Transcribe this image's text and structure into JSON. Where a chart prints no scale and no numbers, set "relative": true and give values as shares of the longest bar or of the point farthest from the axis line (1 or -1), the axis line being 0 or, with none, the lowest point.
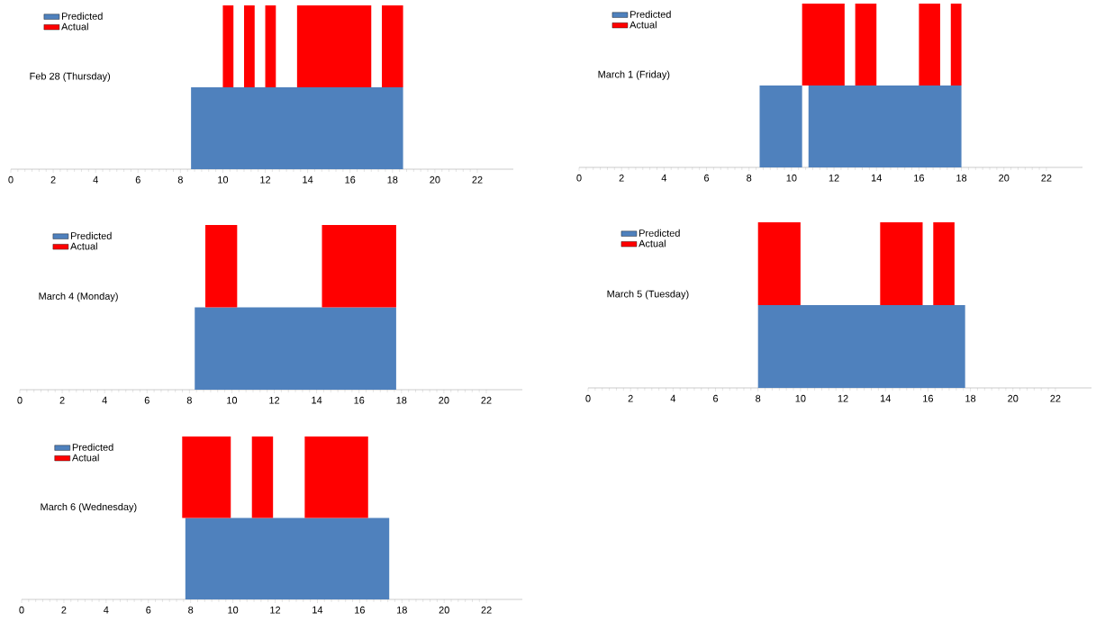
{
  "chart_data": [
    {
      "type": "area",
      "title": "Feb 28 (Thursday)",
      "relative": true,
      "legend": "top left",
      "xlim": [
        0,
        23.7
      ],
      "xticks": [
        0,
        2,
        4,
        6,
        8,
        10,
        12,
        14,
        16,
        18,
        20,
        22
      ],
      "series": [
        {
          "name": "Predicted",
          "color": "#4f81bd",
          "x": [
            8.5,
            8.5,
            18.5,
            18.5
          ],
          "values": [
            0,
            0.5,
            0.5,
            0
          ]
        },
        {
          "name": "Actual",
          "color": "#ff0000",
          "x": [
            10,
            10,
            10.5,
            10.5,
            11,
            11,
            11.5,
            11.5,
            12,
            12,
            12.5,
            12.5,
            13.5,
            13.5,
            17,
            17,
            17.5,
            17.5,
            18.5,
            18.5
          ],
          "values": [
            0.5,
            1,
            1,
            0.5,
            0.5,
            1,
            1,
            0.5,
            0.5,
            1,
            1,
            0.5,
            0.5,
            1,
            1,
            0.5,
            0.5,
            1,
            1,
            0.5
          ]
        }
      ]
    },
    {
      "type": "area",
      "title": "March 1 (Friday)",
      "relative": true,
      "legend": "top left",
      "xlim": [
        0,
        23.7
      ],
      "xticks": [
        0,
        2,
        4,
        6,
        8,
        10,
        12,
        14,
        16,
        18,
        20,
        22
      ],
      "series": [
        {
          "name": "Predicted",
          "color": "#4f81bd",
          "x": [
            8.5,
            8.5,
            10.5,
            10.5,
            10.8,
            10.8,
            18,
            18
          ],
          "values": [
            0,
            0.5,
            0.5,
            0,
            0,
            0.5,
            0.5,
            0
          ]
        },
        {
          "name": "Actual",
          "color": "#ff0000",
          "x": [
            10.5,
            10.5,
            12.5,
            12.5,
            13,
            13,
            14,
            14,
            16,
            16,
            17,
            17,
            17.5,
            17.5,
            18,
            18
          ],
          "values": [
            0.5,
            1,
            1,
            0.5,
            0.5,
            1,
            1,
            0.5,
            0.5,
            1,
            1,
            0.5,
            0.5,
            1,
            1,
            0.5
          ]
        }
      ]
    },
    {
      "type": "area",
      "title": "March 4 (Monday)",
      "relative": true,
      "legend": "top left",
      "xlim": [
        0,
        23.7
      ],
      "xticks": [
        0,
        2,
        4,
        6,
        8,
        10,
        12,
        14,
        16,
        18,
        20,
        22
      ],
      "series": [
        {
          "name": "Predicted",
          "color": "#4f81bd",
          "x": [
            8.25,
            8.25,
            17.75,
            17.75
          ],
          "values": [
            0,
            0.5,
            0.5,
            0
          ]
        },
        {
          "name": "Actual",
          "color": "#ff0000",
          "x": [
            8.75,
            8.75,
            10.25,
            10.25,
            14.25,
            14.25,
            17.75,
            17.75
          ],
          "values": [
            0.5,
            1,
            1,
            0.5,
            0.5,
            1,
            1,
            0.5
          ]
        }
      ]
    },
    {
      "type": "area",
      "title": "March 5 (Tuesday)",
      "relative": true,
      "legend": "top left",
      "xlim": [
        0,
        23.7
      ],
      "xticks": [
        0,
        2,
        4,
        6,
        8,
        10,
        12,
        14,
        16,
        18,
        20,
        22
      ],
      "series": [
        {
          "name": "Predicted",
          "color": "#4f81bd",
          "x": [
            8,
            8,
            17.75,
            17.75
          ],
          "values": [
            0,
            0.5,
            0.5,
            0
          ]
        },
        {
          "name": "Actual",
          "color": "#ff0000",
          "x": [
            8,
            8,
            10,
            10,
            13.75,
            13.75,
            15.75,
            15.75,
            16.25,
            16.25,
            17.25,
            17.25
          ],
          "values": [
            0.5,
            1,
            1,
            0.5,
            0.5,
            1,
            1,
            0.5,
            0.5,
            1,
            1,
            0.5
          ]
        }
      ]
    },
    {
      "type": "area",
      "title": "March 6 (Wednesday)",
      "relative": true,
      "legend": "top left",
      "xlim": [
        0,
        23.7
      ],
      "xticks": [
        0,
        2,
        4,
        6,
        8,
        10,
        12,
        14,
        16,
        18,
        20,
        22
      ],
      "series": [
        {
          "name": "Predicted",
          "color": "#4f81bd",
          "x": [
            7.75,
            7.75,
            17.4,
            17.4
          ],
          "values": [
            0,
            0.5,
            0.5,
            0
          ]
        },
        {
          "name": "Actual",
          "color": "#ff0000",
          "x": [
            7.6,
            7.6,
            9.9,
            9.9,
            10.9,
            10.9,
            11.9,
            11.9,
            13.4,
            13.4,
            16.4,
            16.4
          ],
          "values": [
            0.5,
            1,
            1,
            0.5,
            0.5,
            1,
            1,
            0.5,
            0.5,
            1,
            1,
            0.5
          ]
        }
      ]
    }
  ]
}
